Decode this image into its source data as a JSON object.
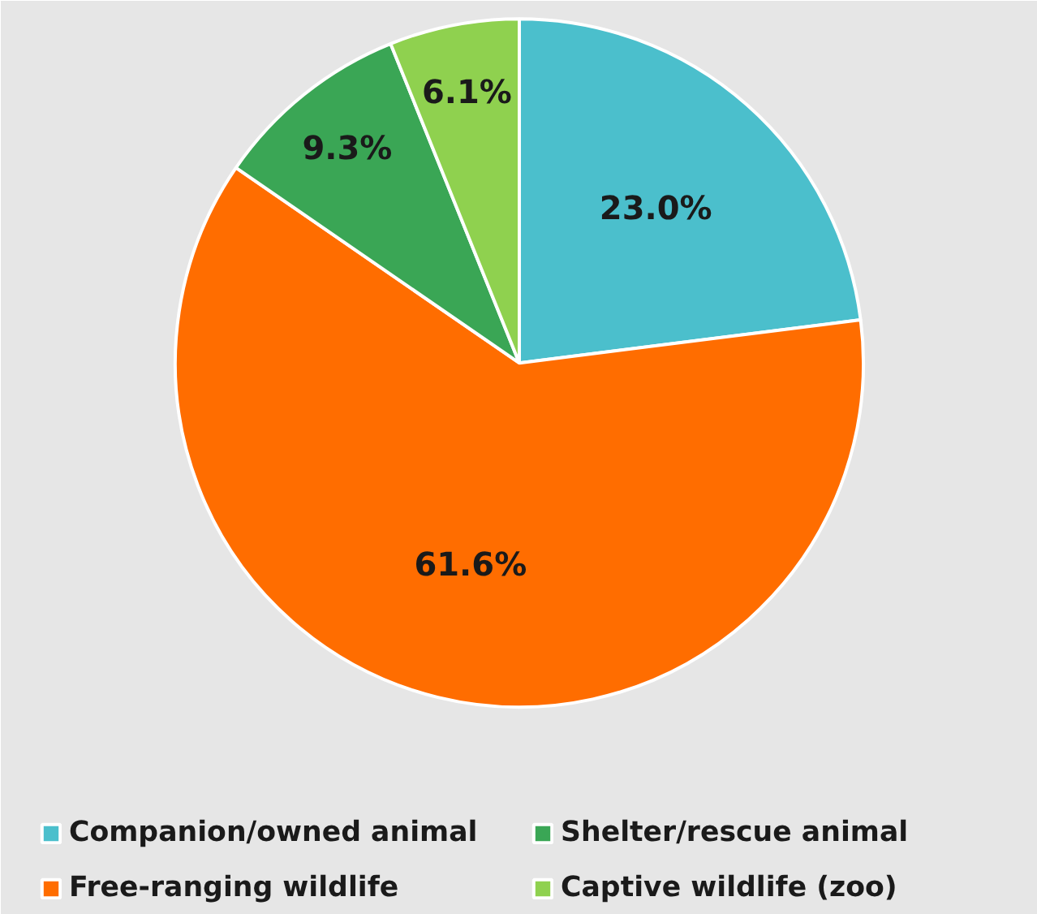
{
  "chart_data": {
    "type": "pie",
    "categories": [
      "Companion/owned animal",
      "Free-ranging wildlife",
      "Shelter/rescue animal",
      "Captive wildlife (zoo)"
    ],
    "values": [
      23.0,
      61.6,
      9.3,
      6.1
    ],
    "colors": [
      "#4bbfcc",
      "#ff6d00",
      "#3aa655",
      "#8fd14f"
    ],
    "value_labels": [
      "23.0%",
      "61.6%",
      "9.3%",
      "6.1%"
    ],
    "legend": "bottom"
  }
}
